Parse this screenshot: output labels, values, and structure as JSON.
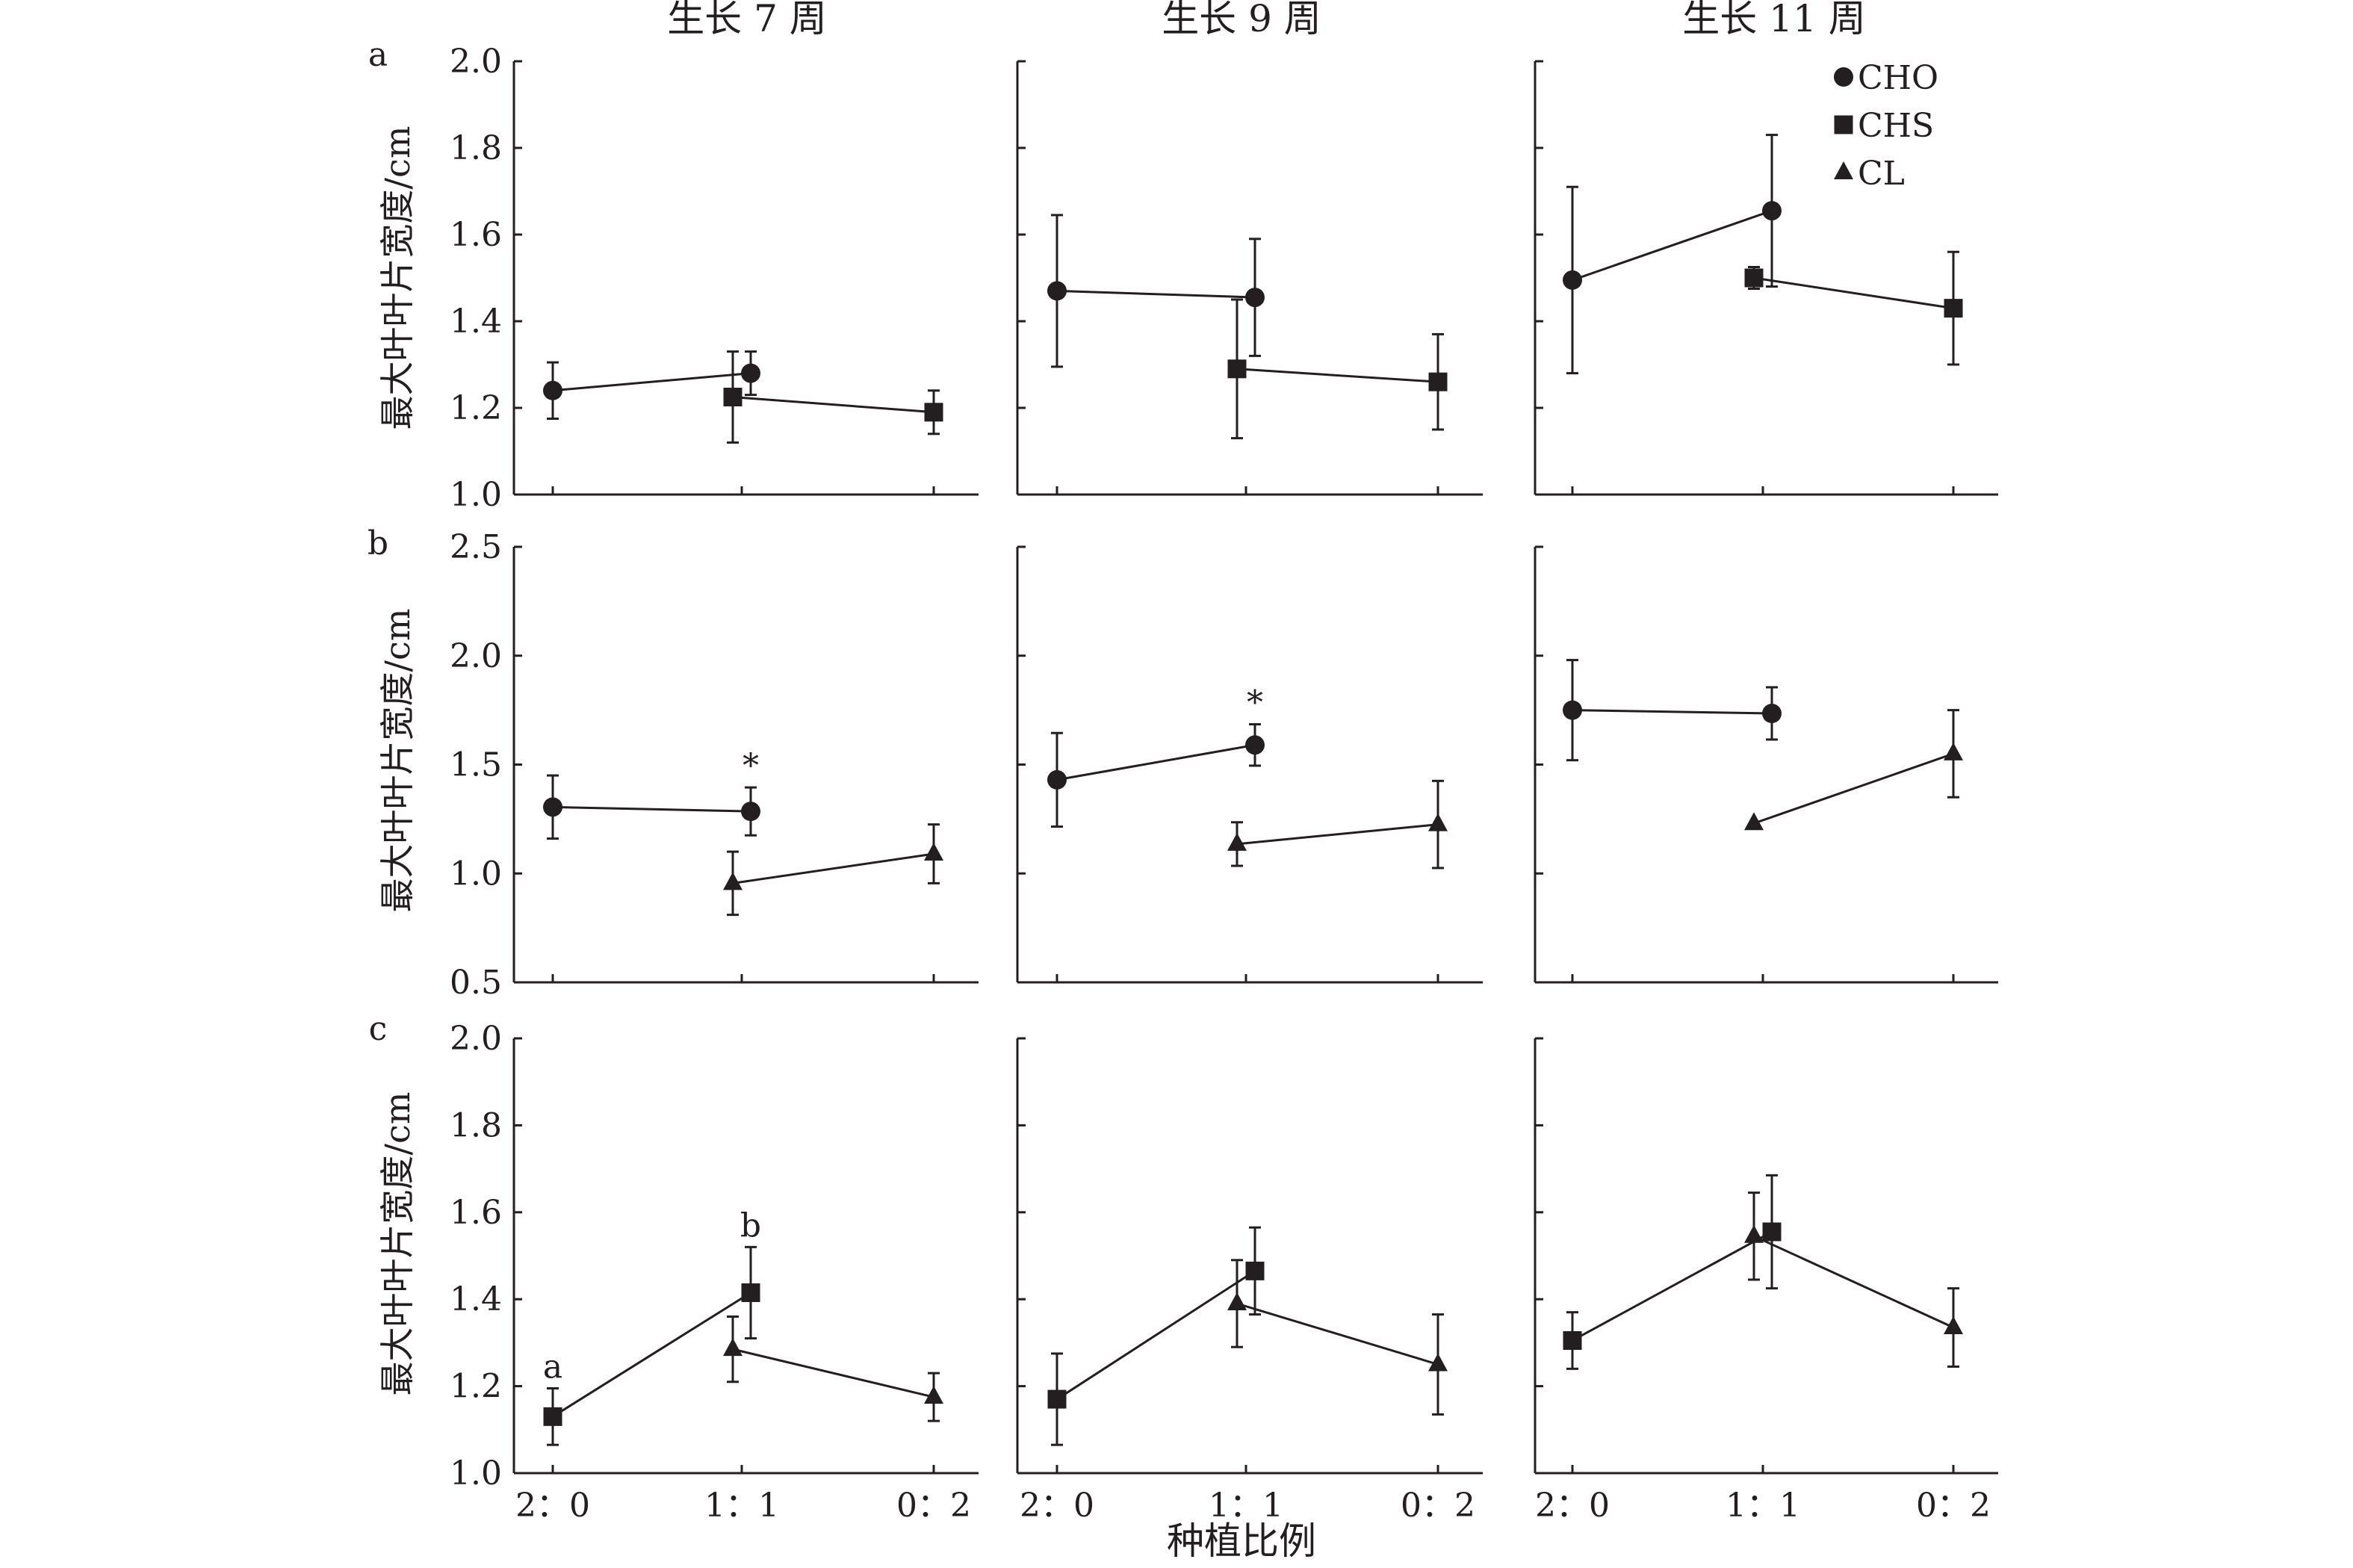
{
  "figure": {
    "x_axis_label": "种植比例",
    "y_axis_label": "最大叶叶片宽度/cm",
    "legend": [
      {
        "name": "CHO",
        "marker": "circle"
      },
      {
        "name": "CHS",
        "marker": "square"
      },
      {
        "name": "CL",
        "marker": "triangle"
      }
    ],
    "column_titles": [
      "生长 7 周",
      "生长 9 周",
      "生长 11 周"
    ],
    "row_labels": [
      "a",
      "b",
      "c"
    ],
    "x_categories": [
      "2：0",
      "1：1",
      "0：2"
    ],
    "colors": {
      "ink": "#231f20",
      "background": "#ffffff"
    }
  },
  "chart_data": [
    {
      "type": "line",
      "row": "a",
      "column": "生长 7 周",
      "ylim": [
        1.0,
        2.0
      ],
      "yticks": [
        "1.0",
        "1.2",
        "1.4",
        "1.6",
        "1.8",
        "2.0"
      ],
      "series": [
        {
          "name": "CHO",
          "marker": "circle",
          "x": [
            "2：0",
            "1：1"
          ],
          "y": [
            1.24,
            1.28
          ],
          "err": [
            0.065,
            0.05
          ]
        },
        {
          "name": "CHS",
          "marker": "square",
          "x": [
            "1：1",
            "0：2"
          ],
          "y": [
            1.225,
            1.19
          ],
          "err": [
            0.105,
            0.05
          ]
        }
      ],
      "annotations": []
    },
    {
      "type": "line",
      "row": "a",
      "column": "生长 9 周",
      "ylim": [
        1.0,
        2.0
      ],
      "series": [
        {
          "name": "CHO",
          "marker": "circle",
          "x": [
            "2：0",
            "1：1"
          ],
          "y": [
            1.47,
            1.455
          ],
          "err": [
            0.175,
            0.135
          ]
        },
        {
          "name": "CHS",
          "marker": "square",
          "x": [
            "1：1",
            "0：2"
          ],
          "y": [
            1.29,
            1.26
          ],
          "err": [
            0.16,
            0.11
          ]
        }
      ],
      "annotations": []
    },
    {
      "type": "line",
      "row": "a",
      "column": "生长 11 周",
      "ylim": [
        1.0,
        2.0
      ],
      "series": [
        {
          "name": "CHO",
          "marker": "circle",
          "x": [
            "2：0",
            "1：1"
          ],
          "y": [
            1.495,
            1.655
          ],
          "err": [
            0.215,
            0.175
          ]
        },
        {
          "name": "CHS",
          "marker": "square",
          "x": [
            "1：1",
            "0：2"
          ],
          "y": [
            1.5,
            1.43
          ],
          "err": [
            0.025,
            0.13
          ]
        }
      ],
      "annotations": []
    },
    {
      "type": "line",
      "row": "b",
      "column": "生长 7 周",
      "ylim": [
        0.5,
        2.5
      ],
      "yticks": [
        "0.5",
        "1.0",
        "1.5",
        "2.0",
        "2.5"
      ],
      "series": [
        {
          "name": "CHO",
          "marker": "circle",
          "x": [
            "2：0",
            "1：1"
          ],
          "y": [
            1.305,
            1.285
          ],
          "err": [
            0.145,
            0.11
          ]
        },
        {
          "name": "CL",
          "marker": "triangle",
          "x": [
            "1：1",
            "0：2"
          ],
          "y": [
            0.955,
            1.09
          ],
          "err": [
            0.145,
            0.135
          ]
        }
      ],
      "annotations": [
        {
          "text": "*",
          "x": "1：1",
          "y": 1.285
        }
      ]
    },
    {
      "type": "line",
      "row": "b",
      "column": "生长 9 周",
      "ylim": [
        0.5,
        2.5
      ],
      "series": [
        {
          "name": "CHO",
          "marker": "circle",
          "x": [
            "2：0",
            "1：1"
          ],
          "y": [
            1.43,
            1.59
          ],
          "err": [
            0.215,
            0.095
          ]
        },
        {
          "name": "CL",
          "marker": "triangle",
          "x": [
            "1：1",
            "0：2"
          ],
          "y": [
            1.135,
            1.225
          ],
          "err": [
            0.1,
            0.2
          ]
        }
      ],
      "annotations": [
        {
          "text": "*",
          "x": "1：1",
          "y": 1.59
        }
      ]
    },
    {
      "type": "line",
      "row": "b",
      "column": "生长 11 周",
      "ylim": [
        0.5,
        2.5
      ],
      "series": [
        {
          "name": "CHO",
          "marker": "circle",
          "x": [
            "2：0",
            "1：1"
          ],
          "y": [
            1.75,
            1.735
          ],
          "err": [
            0.23,
            0.12
          ]
        },
        {
          "name": "CL",
          "marker": "triangle",
          "x": [
            "1：1",
            "0：2"
          ],
          "y": [
            1.23,
            1.55
          ],
          "err": [
            0.0,
            0.2
          ]
        }
      ],
      "annotations": []
    },
    {
      "type": "line",
      "row": "c",
      "column": "生长 7 周",
      "ylim": [
        1.0,
        2.0
      ],
      "yticks": [
        "1.0",
        "1.2",
        "1.4",
        "1.6",
        "1.8",
        "2.0"
      ],
      "series": [
        {
          "name": "CHS",
          "marker": "square",
          "x": [
            "2：0",
            "1：1"
          ],
          "y": [
            1.13,
            1.415
          ],
          "err": [
            0.065,
            0.105
          ]
        },
        {
          "name": "CL",
          "marker": "triangle",
          "x": [
            "1：1",
            "0：2"
          ],
          "y": [
            1.285,
            1.175
          ],
          "err": [
            0.075,
            0.055
          ]
        }
      ],
      "annotations": [
        {
          "text": "a",
          "x": "2：0",
          "y": 1.13
        },
        {
          "text": "b",
          "x": "1：1",
          "y": 1.415
        }
      ]
    },
    {
      "type": "line",
      "row": "c",
      "column": "生长 9 周",
      "ylim": [
        1.0,
        2.0
      ],
      "series": [
        {
          "name": "CHS",
          "marker": "square",
          "x": [
            "2：0",
            "1：1"
          ],
          "y": [
            1.17,
            1.465
          ],
          "err": [
            0.105,
            0.1
          ]
        },
        {
          "name": "CL",
          "marker": "triangle",
          "x": [
            "1：1",
            "0：2"
          ],
          "y": [
            1.39,
            1.25
          ],
          "err": [
            0.1,
            0.115
          ]
        }
      ],
      "annotations": []
    },
    {
      "type": "line",
      "row": "c",
      "column": "生长 11 周",
      "ylim": [
        1.0,
        2.0
      ],
      "series": [
        {
          "name": "CHS",
          "marker": "square",
          "x": [
            "2：0",
            "1：1"
          ],
          "y": [
            1.305,
            1.555
          ],
          "err": [
            0.065,
            0.13
          ]
        },
        {
          "name": "CL",
          "marker": "triangle",
          "x": [
            "1：1",
            "0：2"
          ],
          "y": [
            1.545,
            1.335
          ],
          "err": [
            0.1,
            0.09
          ]
        }
      ],
      "annotations": []
    }
  ]
}
